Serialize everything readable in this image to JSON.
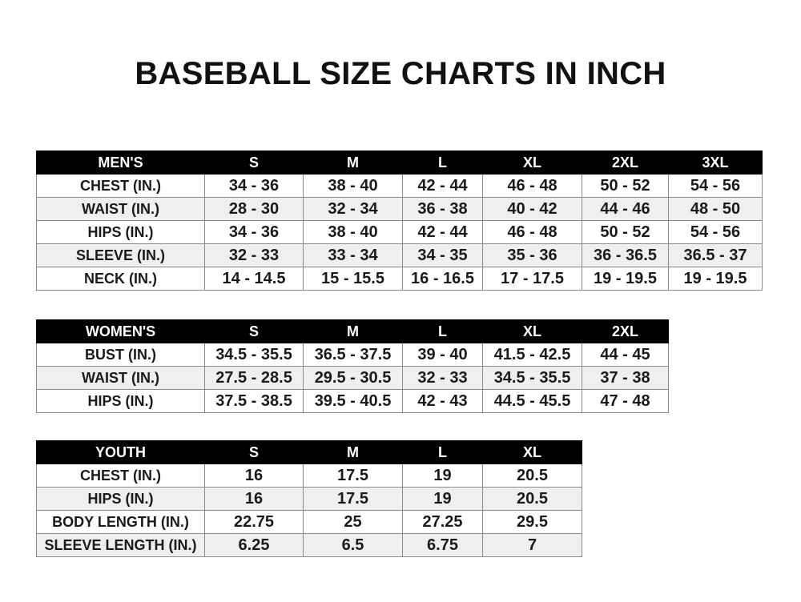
{
  "title": "BASEBALL SIZE CHARTS IN INCH",
  "tables": [
    {
      "id": "men",
      "header": [
        "MEN'S",
        "S",
        "M",
        "L",
        "XL",
        "2XL",
        "3XL"
      ],
      "rows": [
        [
          "CHEST (IN.)",
          "34 - 36",
          "38 - 40",
          "42 - 44",
          "46 - 48",
          "50 - 52",
          "54 - 56"
        ],
        [
          "WAIST (IN.)",
          "28 - 30",
          "32 - 34",
          "36 - 38",
          "40 - 42",
          "44 - 46",
          "48 - 50"
        ],
        [
          "HIPS (IN.)",
          "34 - 36",
          "38 - 40",
          "42 - 44",
          "46 - 48",
          "50 - 52",
          "54 - 56"
        ],
        [
          "SLEEVE (IN.)",
          "32 - 33",
          "33 - 34",
          "34 - 35",
          "35 - 36",
          "36 - 36.5",
          "36.5 - 37"
        ],
        [
          "NECK (IN.)",
          "14 - 14.5",
          "15 - 15.5",
          "16 - 16.5",
          "17 - 17.5",
          "19 - 19.5",
          "19 - 19.5"
        ]
      ]
    },
    {
      "id": "women",
      "header": [
        "WOMEN'S",
        "S",
        "M",
        "L",
        "XL",
        "2XL"
      ],
      "rows": [
        [
          "BUST (IN.)",
          "34.5 - 35.5",
          "36.5 - 37.5",
          "39 - 40",
          "41.5 - 42.5",
          "44 - 45"
        ],
        [
          "WAIST (IN.)",
          "27.5 - 28.5",
          "29.5 - 30.5",
          "32 - 33",
          "34.5 - 35.5",
          "37 - 38"
        ],
        [
          "HIPS (IN.)",
          "37.5 - 38.5",
          "39.5 - 40.5",
          "42 - 43",
          "44.5 - 45.5",
          "47 - 48"
        ]
      ]
    },
    {
      "id": "youth",
      "header": [
        "YOUTH",
        "S",
        "M",
        "L",
        "XL"
      ],
      "rows": [
        [
          "CHEST (IN.)",
          "16",
          "17.5",
          "19",
          "20.5"
        ],
        [
          "HIPS (IN.)",
          "16",
          "17.5",
          "19",
          "20.5"
        ],
        [
          "BODY LENGTH (IN.)",
          "22.75",
          "25",
          "27.25",
          "29.5"
        ],
        [
          "SLEEVE LENGTH (IN.)",
          "6.25",
          "6.5",
          "6.75",
          "7"
        ]
      ]
    }
  ]
}
